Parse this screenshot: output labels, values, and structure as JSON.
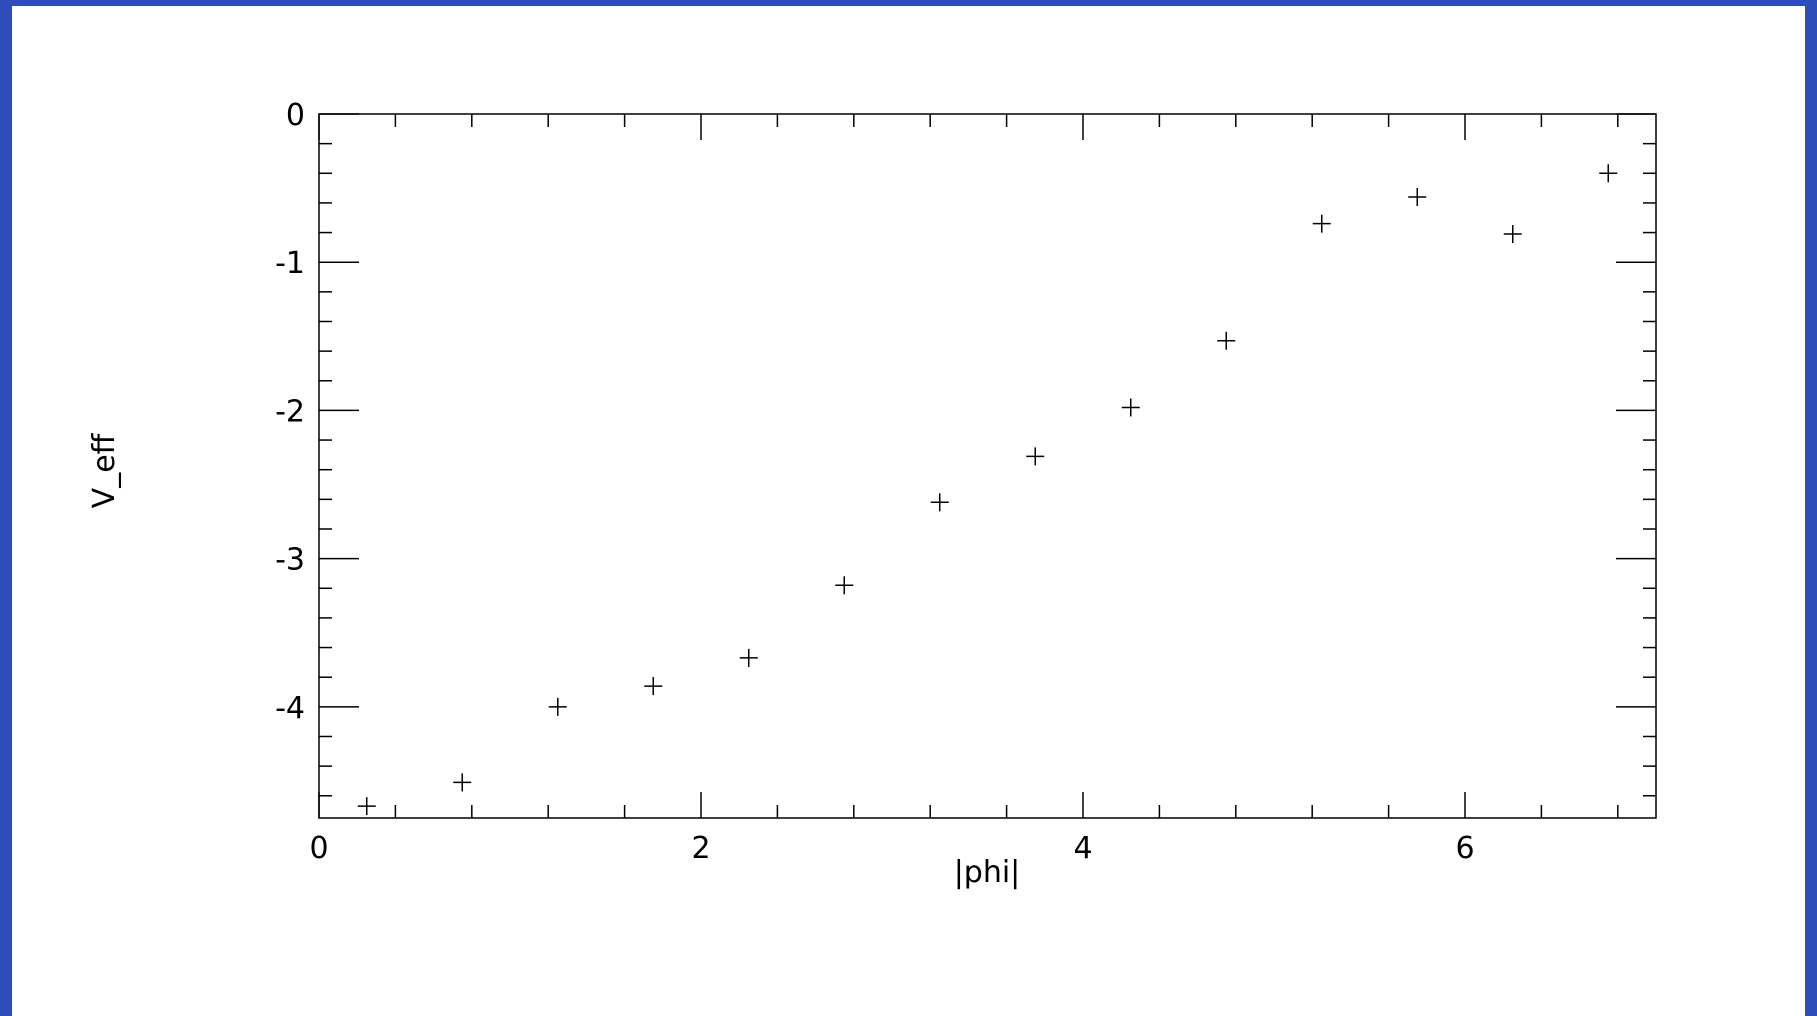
{
  "chart_data": {
    "type": "scatter",
    "title": "",
    "xlabel": "|phi|",
    "ylabel": "V_eff",
    "xlim": [
      0,
      7
    ],
    "ylim": [
      -4.75,
      0
    ],
    "grid": false,
    "marker": "plus",
    "x_ticks": [
      "0",
      "2",
      "4",
      "6"
    ],
    "y_ticks": [
      "0",
      "-1",
      "-2",
      "-3",
      "-4"
    ],
    "x_tick_values": [
      0,
      2,
      4,
      6
    ],
    "y_tick_values": [
      0,
      -1,
      -2,
      -3,
      -4
    ],
    "points": {
      "x": [
        0.25,
        0.75,
        1.25,
        1.75,
        2.25,
        2.75,
        3.25,
        3.75,
        4.25,
        4.75,
        5.25,
        5.75,
        6.25,
        6.75
      ],
      "y": [
        -4.67,
        -4.51,
        -4.0,
        -3.86,
        -3.67,
        -3.18,
        -2.62,
        -2.31,
        -1.98,
        -1.53,
        -0.74,
        -0.56,
        -0.81,
        -0.4
      ]
    }
  },
  "colors": {
    "background": "#2f4db8",
    "plot_background": "#ffffff",
    "ink": "#000000"
  }
}
